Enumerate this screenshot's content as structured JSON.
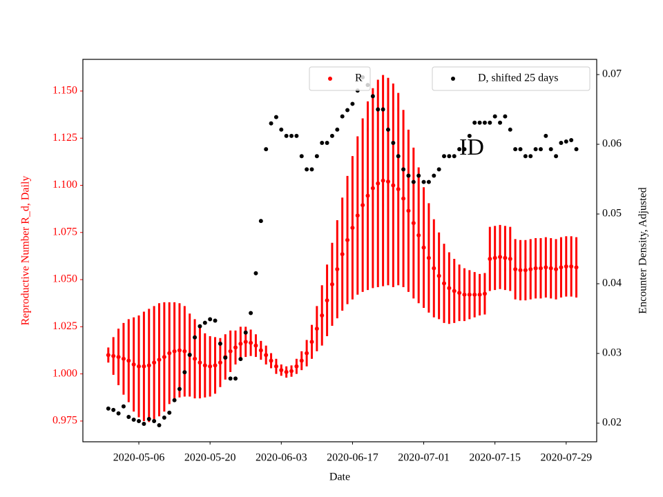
{
  "chart_data": {
    "type": "errorbar-scatter",
    "xlabel": "Date",
    "ylabel": "Reproductive Number R_d, Daily",
    "y2label": "Encounter Density, Adjusted",
    "annotation": "ID",
    "x": [
      "2020-04-30",
      "2020-05-01",
      "2020-05-02",
      "2020-05-03",
      "2020-05-04",
      "2020-05-05",
      "2020-05-06",
      "2020-05-07",
      "2020-05-08",
      "2020-05-09",
      "2020-05-10",
      "2020-05-11",
      "2020-05-12",
      "2020-05-13",
      "2020-05-14",
      "2020-05-15",
      "2020-05-16",
      "2020-05-17",
      "2020-05-18",
      "2020-05-19",
      "2020-05-20",
      "2020-05-21",
      "2020-05-22",
      "2020-05-23",
      "2020-05-24",
      "2020-05-25",
      "2020-05-26",
      "2020-05-27",
      "2020-05-28",
      "2020-05-29",
      "2020-05-30",
      "2020-05-31",
      "2020-06-01",
      "2020-06-02",
      "2020-06-03",
      "2020-06-04",
      "2020-06-05",
      "2020-06-06",
      "2020-06-07",
      "2020-06-08",
      "2020-06-09",
      "2020-06-10",
      "2020-06-11",
      "2020-06-12",
      "2020-06-13",
      "2020-06-14",
      "2020-06-15",
      "2020-06-16",
      "2020-06-17",
      "2020-06-18",
      "2020-06-19",
      "2020-06-20",
      "2020-06-21",
      "2020-06-22",
      "2020-06-23",
      "2020-06-24",
      "2020-06-25",
      "2020-06-26",
      "2020-06-27",
      "2020-06-28",
      "2020-06-29",
      "2020-06-30",
      "2020-07-01",
      "2020-07-02",
      "2020-07-03",
      "2020-07-04",
      "2020-07-05",
      "2020-07-06",
      "2020-07-07",
      "2020-07-08",
      "2020-07-09",
      "2020-07-10",
      "2020-07-11",
      "2020-07-12",
      "2020-07-13",
      "2020-07-14",
      "2020-07-15",
      "2020-07-16",
      "2020-07-17",
      "2020-07-18",
      "2020-07-19",
      "2020-07-20",
      "2020-07-21",
      "2020-07-22",
      "2020-07-23",
      "2020-07-24",
      "2020-07-25",
      "2020-07-26",
      "2020-07-27",
      "2020-07-28",
      "2020-07-29",
      "2020-07-30",
      "2020-07-31"
    ],
    "series": [
      {
        "name": "R",
        "color": "#ff0000",
        "axis": "y",
        "values": [
          1.01,
          1.0095,
          1.009,
          1.008,
          1.007,
          1.005,
          1.004,
          1.004,
          1.0045,
          1.006,
          1.0075,
          1.009,
          1.011,
          1.012,
          1.0125,
          1.012,
          1.01,
          1.008,
          1.006,
          1.0045,
          1.004,
          1.0045,
          1.006,
          1.009,
          1.012,
          1.014,
          1.016,
          1.017,
          1.0165,
          1.015,
          1.0125,
          1.01,
          1.007,
          1.004,
          1.002,
          1.001,
          1.0015,
          1.004,
          1.007,
          1.011,
          1.017,
          1.024,
          1.031,
          1.039,
          1.0475,
          1.0555,
          1.0635,
          1.071,
          1.0775,
          1.084,
          1.0895,
          1.0945,
          1.0985,
          1.101,
          1.1025,
          1.102,
          1.1,
          1.098,
          1.093,
          1.0865,
          1.08,
          1.0735,
          1.067,
          1.0615,
          1.056,
          1.052,
          1.048,
          1.0455,
          1.044,
          1.043,
          1.042,
          1.042,
          1.042,
          1.042,
          1.0425,
          1.061,
          1.0615,
          1.062,
          1.0615,
          1.061,
          1.0555,
          1.055,
          1.055,
          1.0555,
          1.056,
          1.056,
          1.0565,
          1.056,
          1.0555,
          1.0565,
          1.057,
          1.057,
          1.0565
        ],
        "errors": [
          0.004,
          0.01,
          0.015,
          0.019,
          0.022,
          0.025,
          0.027,
          0.029,
          0.03,
          0.03,
          0.03,
          0.029,
          0.027,
          0.026,
          0.025,
          0.024,
          0.022,
          0.021,
          0.019,
          0.017,
          0.016,
          0.015,
          0.013,
          0.012,
          0.011,
          0.009,
          0.009,
          0.008,
          0.007,
          0.006,
          0.005,
          0.005,
          0.004,
          0.004,
          0.003,
          0.003,
          0.003,
          0.004,
          0.005,
          0.007,
          0.009,
          0.012,
          0.016,
          0.019,
          0.022,
          0.026,
          0.03,
          0.034,
          0.038,
          0.042,
          0.046,
          0.05,
          0.053,
          0.055,
          0.056,
          0.055,
          0.054,
          0.051,
          0.047,
          0.043,
          0.04,
          0.036,
          0.032,
          0.029,
          0.026,
          0.023,
          0.021,
          0.019,
          0.017,
          0.015,
          0.014,
          0.013,
          0.012,
          0.011,
          0.011,
          0.017,
          0.017,
          0.017,
          0.017,
          0.017,
          0.016,
          0.016,
          0.016,
          0.016,
          0.016,
          0.016,
          0.016,
          0.016,
          0.016,
          0.016,
          0.016,
          0.016,
          0.016
        ]
      },
      {
        "name": "D, shifted 25 days",
        "color": "#000000",
        "axis": "y2",
        "values": [
          0.0221,
          0.0219,
          0.0214,
          0.0224,
          0.0209,
          0.0205,
          0.0203,
          0.0199,
          0.0206,
          0.0203,
          0.0197,
          0.0208,
          0.0215,
          0.0233,
          0.0249,
          0.0273,
          0.0298,
          0.0323,
          0.0339,
          0.0344,
          0.0349,
          0.0347,
          0.0314,
          0.0294,
          0.0264,
          0.0264,
          0.0292,
          0.033,
          0.0358,
          0.0415,
          0.049,
          0.0593,
          0.063,
          0.0639,
          0.0621,
          0.0612,
          0.0612,
          0.0612,
          0.0583,
          0.0564,
          0.0564,
          0.0583,
          0.0602,
          0.0602,
          0.0612,
          0.0621,
          0.064,
          0.0649,
          0.0658,
          0.0677,
          0.0696,
          0.0685,
          0.0669,
          0.065,
          0.065,
          0.0621,
          0.0602,
          0.0583,
          0.0564,
          0.0555,
          0.0546,
          0.0555,
          0.0546,
          0.0546,
          0.0555,
          0.0564,
          0.0583,
          0.0583,
          0.0583,
          0.0593,
          0.0593,
          0.0612,
          0.0631,
          0.0631,
          0.0631,
          0.0631,
          0.064,
          0.0631,
          0.064,
          0.0621,
          0.0593,
          0.0593,
          0.0583,
          0.0583,
          0.0593,
          0.0593,
          0.0612,
          0.0593,
          0.0583,
          0.0602,
          0.0604,
          0.0606,
          0.0593
        ]
      }
    ],
    "xlim": [
      "2020-04-25",
      "2020-08-04"
    ],
    "xticks": [
      "2020-05-06",
      "2020-05-20",
      "2020-06-03",
      "2020-06-17",
      "2020-07-01",
      "2020-07-15",
      "2020-07-29"
    ],
    "ylim": [
      0.964,
      1.1668
    ],
    "yticks": [
      {
        "value": 0.975,
        "label": "0.975"
      },
      {
        "value": 1.0,
        "label": "1.000"
      },
      {
        "value": 1.025,
        "label": "1.025"
      },
      {
        "value": 1.05,
        "label": "1.050"
      },
      {
        "value": 1.075,
        "label": "1.075"
      },
      {
        "value": 1.1,
        "label": "1.100"
      },
      {
        "value": 1.125,
        "label": "1.125"
      },
      {
        "value": 1.15,
        "label": "1.150"
      }
    ],
    "y2lim": [
      0.01733,
      0.07218
    ],
    "y2ticks": [
      0.02,
      0.03,
      0.04,
      0.05,
      0.06,
      0.07
    ],
    "ylabel_color": "#ff0000",
    "grid": false
  }
}
